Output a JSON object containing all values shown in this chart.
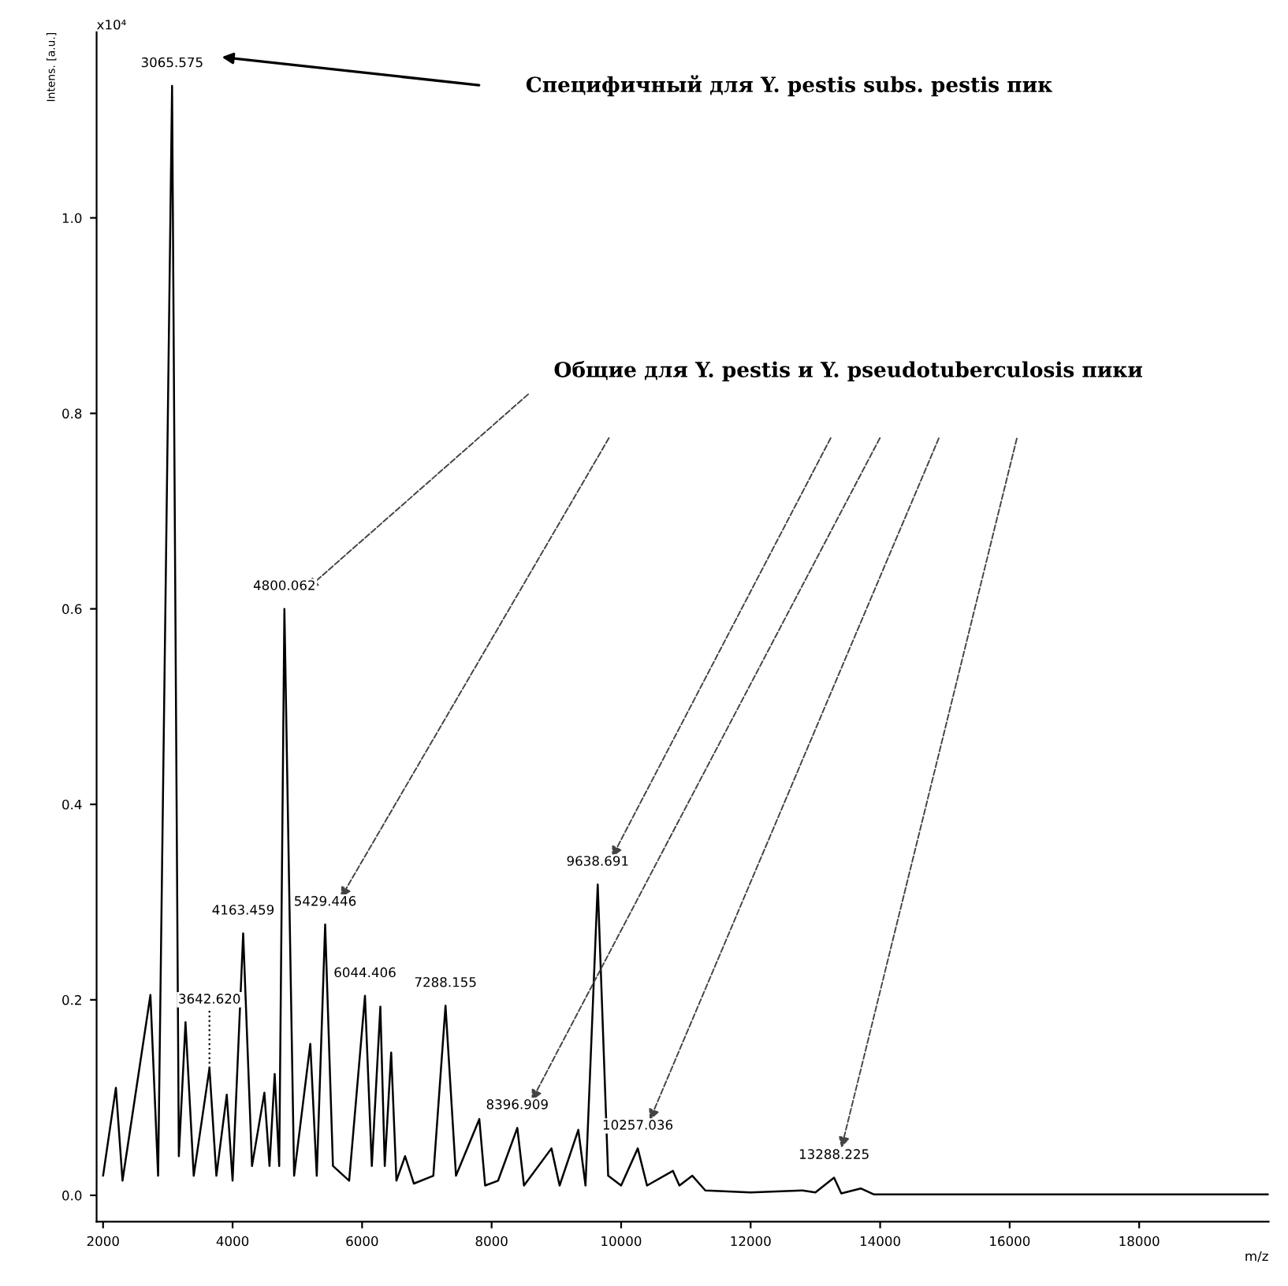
{
  "chart_data": {
    "type": "line",
    "xlabel": "m/z",
    "ylabel": "Intens. [a.u.]",
    "series": [
      {
        "color": "#000000",
        "x": [
          2000,
          2198,
          2300,
          2731,
          2850,
          3065.575,
          3170,
          3273,
          3400,
          3642.62,
          3750,
          3910,
          4000,
          4163.459,
          4300,
          4491,
          4570,
          4650,
          4720,
          4800.062,
          4950,
          5200,
          5300,
          5429.446,
          5550,
          5800,
          6044.406,
          6150,
          6282,
          6350,
          6449,
          6530,
          6664,
          6800,
          7100,
          7288.155,
          7450,
          7810,
          7900,
          8100,
          8396.909,
          8500,
          8924,
          9050,
          9339,
          9450,
          9638.691,
          9800,
          10000,
          10257.036,
          10400,
          10800,
          10900,
          11100,
          11300,
          12000,
          12800,
          13000,
          13288.225,
          13400,
          13700,
          13900,
          16000,
          20000
        ],
        "values": [
          0.02,
          0.11,
          0.015,
          0.205,
          0.02,
          1.135,
          0.04,
          0.177,
          0.02,
          0.13,
          0.02,
          0.103,
          0.015,
          0.268,
          0.03,
          0.105,
          0.03,
          0.124,
          0.03,
          0.6,
          0.02,
          0.155,
          0.02,
          0.277,
          0.03,
          0.015,
          0.204,
          0.03,
          0.193,
          0.03,
          0.146,
          0.015,
          0.04,
          0.012,
          0.02,
          0.194,
          0.02,
          0.078,
          0.01,
          0.015,
          0.069,
          0.01,
          0.048,
          0.01,
          0.067,
          0.01,
          0.318,
          0.02,
          0.01,
          0.048,
          0.01,
          0.025,
          0.01,
          0.02,
          0.005,
          0.003,
          0.005,
          0.003,
          0.018,
          0.002,
          0.007,
          0.001,
          0.001,
          0.001
        ]
      }
    ],
    "xlim": [
      1900,
      20000
    ],
    "ylim": [
      -0.027,
      1.19
    ],
    "xticks": [
      2000,
      4000,
      6000,
      8000,
      10000,
      12000,
      14000,
      16000,
      18000
    ],
    "yticks": [
      {
        "value": 0,
        "label": "0.0"
      },
      {
        "value": 0.2,
        "label": "0.2"
      },
      {
        "value": 0.4,
        "label": "0.4"
      },
      {
        "value": 0.6,
        "label": "0.6"
      },
      {
        "value": 0.8,
        "label": "0.8"
      },
      {
        "value": 1.0,
        "label": "1.0"
      }
    ],
    "grid": false,
    "marker": "none",
    "line_style": "solid",
    "annotations": [
      "x10⁴",
      "Специфичный для Y. pestis subs. pestis пик",
      "Общие для Y. pestis и Y. pseudotuberculosis пики",
      {
        "text": "3065.575",
        "x": 3065.575,
        "y": 1.135
      },
      {
        "text": "3642.620",
        "x": 3642.62,
        "y": 0.13
      },
      {
        "text": "4163.459",
        "x": 4163.459,
        "y": 0.268
      },
      {
        "text": "4800.062",
        "x": 4800.062,
        "y": 0.6
      },
      {
        "text": "5429.446",
        "x": 5429.446,
        "y": 0.277
      },
      {
        "text": "6044.406",
        "x": 6044.406,
        "y": 0.204
      },
      {
        "text": "7288.155",
        "x": 7288.155,
        "y": 0.194
      },
      {
        "text": "8396.909",
        "x": 8396.909,
        "y": 0.069
      },
      {
        "text": "9638.691",
        "x": 9638.691,
        "y": 0.318
      },
      {
        "text": "10257.036",
        "x": 10257.036,
        "y": 0.048
      },
      {
        "text": "13288.225",
        "x": 13288.225,
        "y": 0.018
      }
    ]
  }
}
